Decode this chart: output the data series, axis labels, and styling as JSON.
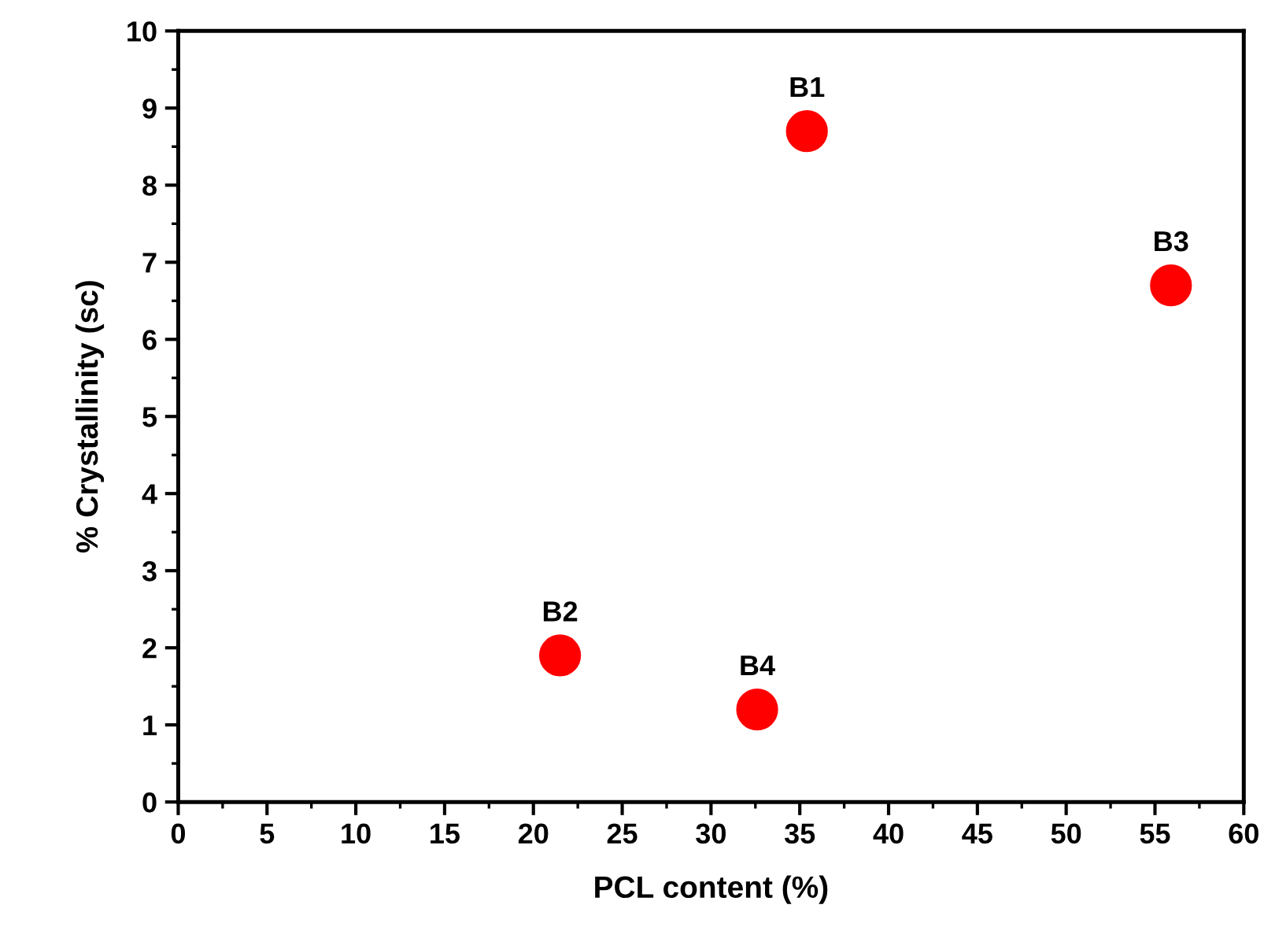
{
  "chart_data": {
    "type": "scatter",
    "xlabel": "PCL content (%)",
    "ylabel": "% Crystallinity (sc)",
    "x": [
      35.4,
      21.5,
      55.9,
      32.6
    ],
    "series": [
      {
        "color": "#ff0000",
        "values": [
          8.7,
          1.9,
          6.7,
          1.2
        ]
      }
    ],
    "marker": "circle",
    "annotations": [
      {
        "text": "B1",
        "x": 35.4,
        "y": 8.7
      },
      {
        "text": "B2",
        "x": 21.5,
        "y": 1.9
      },
      {
        "text": "B3",
        "x": 55.9,
        "y": 6.7
      },
      {
        "text": "B4",
        "x": 32.6,
        "y": 1.2
      }
    ],
    "xlim": [
      0,
      60
    ],
    "xticks": [
      0,
      5,
      10,
      15,
      20,
      25,
      30,
      35,
      40,
      45,
      50,
      55,
      60
    ],
    "ylim": [
      0,
      10
    ],
    "yticks": [
      0,
      1,
      2,
      3,
      4,
      5,
      6,
      7,
      8,
      9,
      10
    ],
    "grid": false,
    "legend": false
  }
}
